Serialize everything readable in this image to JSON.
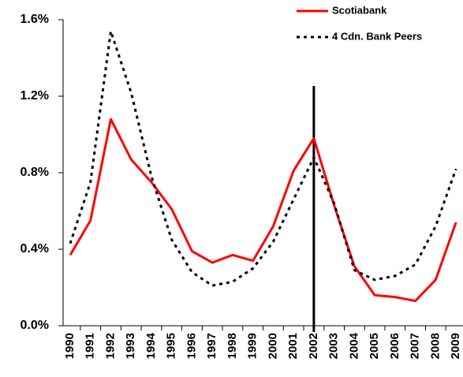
{
  "chart_data": {
    "type": "line",
    "categories": [
      "1990",
      "1991",
      "1992",
      "1993",
      "1994",
      "1995",
      "1996",
      "1997",
      "1998",
      "1999",
      "2000",
      "2001",
      "2002",
      "2003",
      "2004",
      "2005",
      "2006",
      "2007",
      "2008",
      "2009"
    ],
    "series": [
      {
        "name": "Scotiabank",
        "color": "#ff0000",
        "dash": "solid",
        "values": [
          0.37,
          0.55,
          1.08,
          0.87,
          0.75,
          0.61,
          0.39,
          0.33,
          0.37,
          0.34,
          0.52,
          0.81,
          0.98,
          0.63,
          0.31,
          0.16,
          0.15,
          0.13,
          0.24,
          0.54
        ]
      },
      {
        "name": "4 Cdn. Bank Peers",
        "color": "#000000",
        "dash": "dotted",
        "values": [
          0.43,
          0.75,
          1.54,
          1.22,
          0.78,
          0.45,
          0.28,
          0.21,
          0.23,
          0.3,
          0.44,
          0.66,
          0.88,
          0.64,
          0.29,
          0.24,
          0.26,
          0.32,
          0.52,
          0.82
        ]
      }
    ],
    "ylim": [
      0,
      1.6
    ],
    "yticks": [
      {
        "value": 0,
        "label": "0.0%"
      },
      {
        "value": 0.4,
        "label": "0.4%"
      },
      {
        "value": 0.8,
        "label": "0.8%"
      },
      {
        "value": 1.2,
        "label": "1.2%"
      },
      {
        "value": 1.6,
        "label": "1.6%"
      }
    ],
    "vline": "2002",
    "legend": "top-right"
  }
}
